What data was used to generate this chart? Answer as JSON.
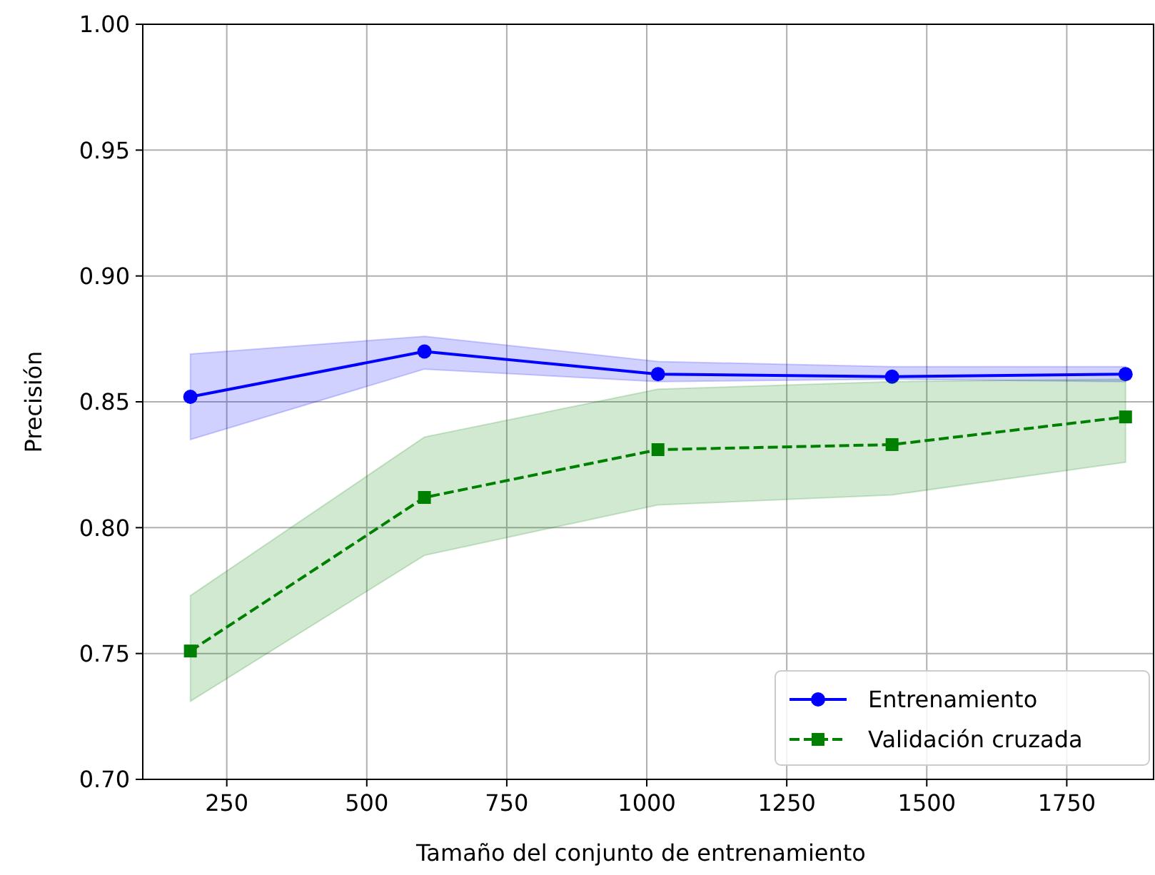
{
  "chart_data": {
    "type": "line",
    "xlabel": "Tamaño del conjunto de entrenamiento",
    "ylabel": "Precisión",
    "x": [
      185,
      603,
      1020,
      1438,
      1855
    ],
    "series": [
      {
        "name": "Entrenamiento",
        "color": "#0000ff",
        "marker": "circle",
        "line_style": "solid",
        "values": [
          0.852,
          0.87,
          0.861,
          0.86,
          0.861
        ],
        "lower": [
          0.835,
          0.863,
          0.858,
          0.859,
          0.858
        ],
        "upper": [
          0.869,
          0.876,
          0.866,
          0.864,
          0.864
        ]
      },
      {
        "name": "Validación cruzada",
        "color": "#008000",
        "marker": "square",
        "line_style": "dashed",
        "values": [
          0.751,
          0.812,
          0.831,
          0.833,
          0.844
        ],
        "lower": [
          0.731,
          0.789,
          0.809,
          0.813,
          0.826
        ],
        "upper": [
          0.773,
          0.836,
          0.855,
          0.858,
          0.859
        ]
      }
    ],
    "xlim": [
      100,
      1905
    ],
    "ylim": [
      0.7,
      1.0
    ],
    "xticks": [
      250,
      500,
      750,
      1000,
      1250,
      1500,
      1750
    ],
    "yticks": [
      {
        "value": 0.7,
        "label": "0.70"
      },
      {
        "value": 0.75,
        "label": "0.75"
      },
      {
        "value": 0.8,
        "label": "0.80"
      },
      {
        "value": 0.85,
        "label": "0.85"
      },
      {
        "value": 0.9,
        "label": "0.90"
      },
      {
        "value": 0.95,
        "label": "0.95"
      },
      {
        "value": 1.0,
        "label": "1.00"
      }
    ],
    "grid": true,
    "legend": "bottom right"
  }
}
